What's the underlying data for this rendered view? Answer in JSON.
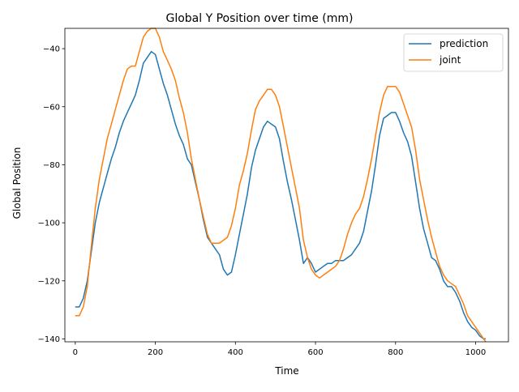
{
  "chart_data": {
    "type": "line",
    "title": "Global Y Position over time (mm)",
    "xlabel": "Time",
    "ylabel": "Global Position",
    "xlim": [
      -26,
      1082
    ],
    "ylim": [
      -141,
      -33
    ],
    "xticks": [
      0,
      200,
      400,
      600,
      800,
      1000
    ],
    "yticks": [
      -140,
      -120,
      -100,
      -80,
      -60,
      -40
    ],
    "grid": false,
    "legend_position": "top-right",
    "series": [
      {
        "name": "prediction",
        "color": "#1f77b4",
        "points": [
          [
            0,
            -129
          ],
          [
            10,
            -129
          ],
          [
            20,
            -126
          ],
          [
            30,
            -120
          ],
          [
            40,
            -110
          ],
          [
            50,
            -100
          ],
          [
            60,
            -93
          ],
          [
            70,
            -88
          ],
          [
            80,
            -83
          ],
          [
            90,
            -78
          ],
          [
            100,
            -74
          ],
          [
            110,
            -69
          ],
          [
            120,
            -65
          ],
          [
            130,
            -62
          ],
          [
            140,
            -59
          ],
          [
            150,
            -56
          ],
          [
            160,
            -51
          ],
          [
            170,
            -45
          ],
          [
            180,
            -43
          ],
          [
            190,
            -41
          ],
          [
            200,
            -42
          ],
          [
            210,
            -47
          ],
          [
            220,
            -52
          ],
          [
            230,
            -56
          ],
          [
            240,
            -61
          ],
          [
            250,
            -66
          ],
          [
            260,
            -70
          ],
          [
            270,
            -73
          ],
          [
            280,
            -78
          ],
          [
            290,
            -80
          ],
          [
            300,
            -86
          ],
          [
            310,
            -92
          ],
          [
            320,
            -99
          ],
          [
            330,
            -105
          ],
          [
            340,
            -107
          ],
          [
            350,
            -109
          ],
          [
            360,
            -111
          ],
          [
            370,
            -116
          ],
          [
            380,
            -118
          ],
          [
            390,
            -117
          ],
          [
            400,
            -111
          ],
          [
            410,
            -104
          ],
          [
            420,
            -97
          ],
          [
            430,
            -90
          ],
          [
            440,
            -81
          ],
          [
            450,
            -75
          ],
          [
            460,
            -71
          ],
          [
            470,
            -67
          ],
          [
            480,
            -65
          ],
          [
            490,
            -66
          ],
          [
            500,
            -67
          ],
          [
            510,
            -71
          ],
          [
            520,
            -79
          ],
          [
            530,
            -86
          ],
          [
            540,
            -92
          ],
          [
            550,
            -99
          ],
          [
            560,
            -106
          ],
          [
            570,
            -114
          ],
          [
            580,
            -112
          ],
          [
            590,
            -114
          ],
          [
            600,
            -117
          ],
          [
            610,
            -116
          ],
          [
            620,
            -115
          ],
          [
            630,
            -114
          ],
          [
            640,
            -114
          ],
          [
            650,
            -113
          ],
          [
            660,
            -113
          ],
          [
            670,
            -113
          ],
          [
            680,
            -112
          ],
          [
            690,
            -111
          ],
          [
            700,
            -109
          ],
          [
            710,
            -107
          ],
          [
            720,
            -103
          ],
          [
            730,
            -96
          ],
          [
            740,
            -89
          ],
          [
            750,
            -80
          ],
          [
            760,
            -70
          ],
          [
            770,
            -64
          ],
          [
            780,
            -63
          ],
          [
            790,
            -62
          ],
          [
            800,
            -62
          ],
          [
            810,
            -65
          ],
          [
            820,
            -69
          ],
          [
            830,
            -72
          ],
          [
            840,
            -77
          ],
          [
            850,
            -86
          ],
          [
            860,
            -95
          ],
          [
            870,
            -102
          ],
          [
            880,
            -107
          ],
          [
            890,
            -112
          ],
          [
            900,
            -113
          ],
          [
            910,
            -116
          ],
          [
            920,
            -120
          ],
          [
            930,
            -122
          ],
          [
            940,
            -122
          ],
          [
            950,
            -124
          ],
          [
            960,
            -127
          ],
          [
            970,
            -131
          ],
          [
            980,
            -134
          ],
          [
            990,
            -136
          ],
          [
            1000,
            -137
          ],
          [
            1010,
            -139
          ],
          [
            1020,
            -140
          ],
          [
            1025,
            -140
          ]
        ]
      },
      {
        "name": "joint",
        "color": "#ff7f0e",
        "points": [
          [
            0,
            -132
          ],
          [
            10,
            -132
          ],
          [
            20,
            -129
          ],
          [
            30,
            -122
          ],
          [
            40,
            -108
          ],
          [
            50,
            -95
          ],
          [
            60,
            -85
          ],
          [
            70,
            -78
          ],
          [
            80,
            -71
          ],
          [
            90,
            -66
          ],
          [
            100,
            -61
          ],
          [
            110,
            -56
          ],
          [
            120,
            -51
          ],
          [
            130,
            -47
          ],
          [
            140,
            -46
          ],
          [
            150,
            -46
          ],
          [
            160,
            -41
          ],
          [
            170,
            -36
          ],
          [
            180,
            -34
          ],
          [
            190,
            -33
          ],
          [
            200,
            -33
          ],
          [
            210,
            -36
          ],
          [
            220,
            -41
          ],
          [
            230,
            -44
          ],
          [
            240,
            -47
          ],
          [
            250,
            -51
          ],
          [
            260,
            -57
          ],
          [
            270,
            -62
          ],
          [
            280,
            -69
          ],
          [
            290,
            -78
          ],
          [
            300,
            -85
          ],
          [
            310,
            -92
          ],
          [
            320,
            -98
          ],
          [
            330,
            -104
          ],
          [
            340,
            -107
          ],
          [
            350,
            -107
          ],
          [
            360,
            -107
          ],
          [
            370,
            -106
          ],
          [
            380,
            -105
          ],
          [
            390,
            -101
          ],
          [
            400,
            -95
          ],
          [
            410,
            -87
          ],
          [
            420,
            -82
          ],
          [
            430,
            -76
          ],
          [
            440,
            -68
          ],
          [
            450,
            -61
          ],
          [
            460,
            -58
          ],
          [
            470,
            -56
          ],
          [
            480,
            -54
          ],
          [
            490,
            -54
          ],
          [
            500,
            -56
          ],
          [
            510,
            -60
          ],
          [
            520,
            -67
          ],
          [
            530,
            -74
          ],
          [
            540,
            -81
          ],
          [
            550,
            -88
          ],
          [
            560,
            -95
          ],
          [
            570,
            -106
          ],
          [
            580,
            -112
          ],
          [
            590,
            -116
          ],
          [
            600,
            -118
          ],
          [
            610,
            -119
          ],
          [
            620,
            -118
          ],
          [
            630,
            -117
          ],
          [
            640,
            -116
          ],
          [
            650,
            -115
          ],
          [
            660,
            -113
          ],
          [
            670,
            -109
          ],
          [
            680,
            -104
          ],
          [
            690,
            -100
          ],
          [
            700,
            -97
          ],
          [
            710,
            -95
          ],
          [
            720,
            -91
          ],
          [
            730,
            -85
          ],
          [
            740,
            -78
          ],
          [
            750,
            -70
          ],
          [
            760,
            -62
          ],
          [
            770,
            -56
          ],
          [
            780,
            -53
          ],
          [
            790,
            -53
          ],
          [
            800,
            -53
          ],
          [
            810,
            -55
          ],
          [
            820,
            -59
          ],
          [
            830,
            -63
          ],
          [
            840,
            -67
          ],
          [
            850,
            -75
          ],
          [
            860,
            -85
          ],
          [
            870,
            -92
          ],
          [
            880,
            -99
          ],
          [
            890,
            -105
          ],
          [
            900,
            -110
          ],
          [
            910,
            -115
          ],
          [
            920,
            -118
          ],
          [
            930,
            -120
          ],
          [
            940,
            -121
          ],
          [
            950,
            -122
          ],
          [
            960,
            -125
          ],
          [
            970,
            -128
          ],
          [
            980,
            -132
          ],
          [
            990,
            -134
          ],
          [
            1000,
            -136
          ],
          [
            1010,
            -138
          ],
          [
            1020,
            -140
          ],
          [
            1025,
            -141
          ]
        ]
      }
    ]
  }
}
